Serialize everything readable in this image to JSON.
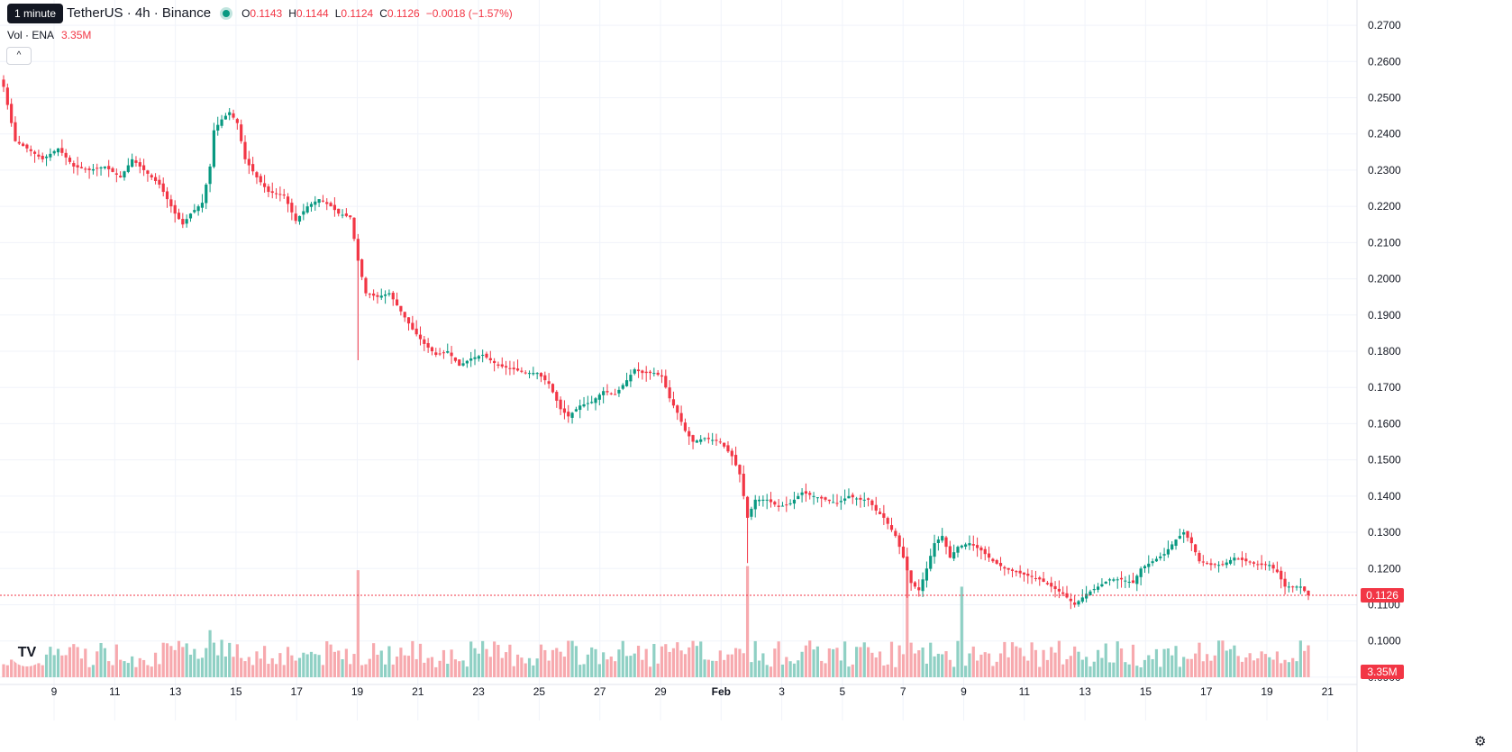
{
  "header": {
    "symbol": "TetherUS · 4h · Binance",
    "tooltip": "1 minute",
    "o_label": "O",
    "o_value": "0.1143",
    "h_label": "H",
    "h_value": "0.1144",
    "l_label": "L",
    "l_value": "0.1124",
    "c_label": "C",
    "c_value": "0.1126",
    "change": "−0.0018 (−1.57%)"
  },
  "volume_legend": {
    "label": "Vol · ENA",
    "value": "3.35M"
  },
  "icons": {
    "collapse": "chevron-up-icon",
    "logo": "tradingview-logo-icon",
    "settings": "gear-icon"
  },
  "logo_text": "TV",
  "colors": {
    "up": "#089981",
    "down": "#f23645",
    "up_vol": "#8fd0c4",
    "down_vol": "#f7a9ae",
    "grid": "#f0f3fa"
  },
  "chart_data": {
    "type": "candlestick",
    "interval": "4h",
    "price_axis": {
      "ticks": [
        "0.2700",
        "0.2600",
        "0.2500",
        "0.2400",
        "0.2300",
        "0.2200",
        "0.2100",
        "0.2000",
        "0.1900",
        "0.1800",
        "0.1700",
        "0.1600",
        "0.1500",
        "0.1400",
        "0.1300",
        "0.1200",
        "0.1100",
        "0.1000",
        "0.0900"
      ],
      "range": [
        0.0855,
        0.2735
      ]
    },
    "time_axis": [
      "9",
      "11",
      "13",
      "15",
      "17",
      "19",
      "21",
      "23",
      "25",
      "27",
      "29",
      "Feb",
      "3",
      "5",
      "7",
      "9",
      "11",
      "13",
      "15",
      "17",
      "19",
      "21"
    ],
    "last_price": "0.1126",
    "last_volume": "3.35M",
    "anchors": [
      [
        0,
        0.253
      ],
      [
        3,
        0.238
      ],
      [
        6,
        0.236
      ],
      [
        10,
        0.233
      ],
      [
        14,
        0.236
      ],
      [
        18,
        0.231
      ],
      [
        22,
        0.23
      ],
      [
        26,
        0.231
      ],
      [
        30,
        0.228
      ],
      [
        33,
        0.233
      ],
      [
        37,
        0.229
      ],
      [
        40,
        0.226
      ],
      [
        44,
        0.218
      ],
      [
        46,
        0.215
      ],
      [
        48,
        0.218
      ],
      [
        51,
        0.221
      ],
      [
        53,
        0.231
      ],
      [
        54,
        0.241
      ],
      [
        56,
        0.244
      ],
      [
        58,
        0.246
      ],
      [
        60,
        0.243
      ],
      [
        62,
        0.233
      ],
      [
        65,
        0.228
      ],
      [
        68,
        0.224
      ],
      [
        72,
        0.223
      ],
      [
        75,
        0.216
      ],
      [
        78,
        0.22
      ],
      [
        81,
        0.222
      ],
      [
        84,
        0.22
      ],
      [
        86,
        0.218
      ],
      [
        89,
        0.217
      ],
      [
        91,
        0.205
      ],
      [
        93,
        0.196
      ],
      [
        96,
        0.195
      ],
      [
        99,
        0.196
      ],
      [
        102,
        0.191
      ],
      [
        105,
        0.186
      ],
      [
        108,
        0.182
      ],
      [
        111,
        0.179
      ],
      [
        114,
        0.18
      ],
      [
        117,
        0.176
      ],
      [
        120,
        0.178
      ],
      [
        123,
        0.179
      ],
      [
        127,
        0.176
      ],
      [
        131,
        0.175
      ],
      [
        134,
        0.174
      ],
      [
        137,
        0.174
      ],
      [
        140,
        0.171
      ],
      [
        143,
        0.164
      ],
      [
        145,
        0.162
      ],
      [
        148,
        0.165
      ],
      [
        151,
        0.166
      ],
      [
        154,
        0.169
      ],
      [
        157,
        0.168
      ],
      [
        160,
        0.172
      ],
      [
        162,
        0.175
      ],
      [
        164,
        0.174
      ],
      [
        167,
        0.174
      ],
      [
        169,
        0.173
      ],
      [
        171,
        0.167
      ],
      [
        173,
        0.163
      ],
      [
        175,
        0.158
      ],
      [
        177,
        0.155
      ],
      [
        180,
        0.156
      ],
      [
        184,
        0.155
      ],
      [
        187,
        0.151
      ],
      [
        189,
        0.146
      ],
      [
        191,
        0.134
      ],
      [
        193,
        0.139
      ],
      [
        196,
        0.139
      ],
      [
        199,
        0.137
      ],
      [
        202,
        0.138
      ],
      [
        205,
        0.141
      ],
      [
        208,
        0.14
      ],
      [
        211,
        0.139
      ],
      [
        214,
        0.138
      ],
      [
        217,
        0.14
      ],
      [
        220,
        0.139
      ],
      [
        222,
        0.139
      ],
      [
        224,
        0.136
      ],
      [
        226,
        0.134
      ],
      [
        229,
        0.129
      ],
      [
        231,
        0.123
      ],
      [
        233,
        0.116
      ],
      [
        235,
        0.114
      ],
      [
        237,
        0.12
      ],
      [
        239,
        0.127
      ],
      [
        241,
        0.129
      ],
      [
        243,
        0.123
      ],
      [
        245,
        0.126
      ],
      [
        248,
        0.127
      ],
      [
        251,
        0.125
      ],
      [
        254,
        0.122
      ],
      [
        257,
        0.12
      ],
      [
        260,
        0.119
      ],
      [
        263,
        0.118
      ],
      [
        266,
        0.117
      ],
      [
        269,
        0.115
      ],
      [
        272,
        0.113
      ],
      [
        275,
        0.11
      ],
      [
        278,
        0.113
      ],
      [
        281,
        0.115
      ],
      [
        284,
        0.117
      ],
      [
        287,
        0.117
      ],
      [
        290,
        0.116
      ],
      [
        292,
        0.12
      ],
      [
        295,
        0.122
      ],
      [
        298,
        0.124
      ],
      [
        301,
        0.128
      ],
      [
        303,
        0.13
      ],
      [
        305,
        0.127
      ],
      [
        307,
        0.122
      ],
      [
        310,
        0.121
      ],
      [
        313,
        0.121
      ],
      [
        316,
        0.123
      ],
      [
        319,
        0.122
      ],
      [
        322,
        0.121
      ],
      [
        325,
        0.121
      ],
      [
        327,
        0.119
      ],
      [
        329,
        0.115
      ],
      [
        333,
        0.115
      ],
      [
        335,
        0.1126
      ]
    ],
    "spikes": [
      [
        91,
        0.1775
      ],
      [
        191,
        0.1215
      ],
      [
        232,
        0.1119
      ]
    ],
    "volume_range": [
      0,
      42000000.0
    ],
    "volume_spikes": [
      [
        91,
        26000000.0
      ],
      [
        191,
        27000000.0
      ],
      [
        232,
        29000000.0
      ],
      [
        246,
        22000000.0
      ]
    ],
    "volume_base": 6000000.0
  }
}
